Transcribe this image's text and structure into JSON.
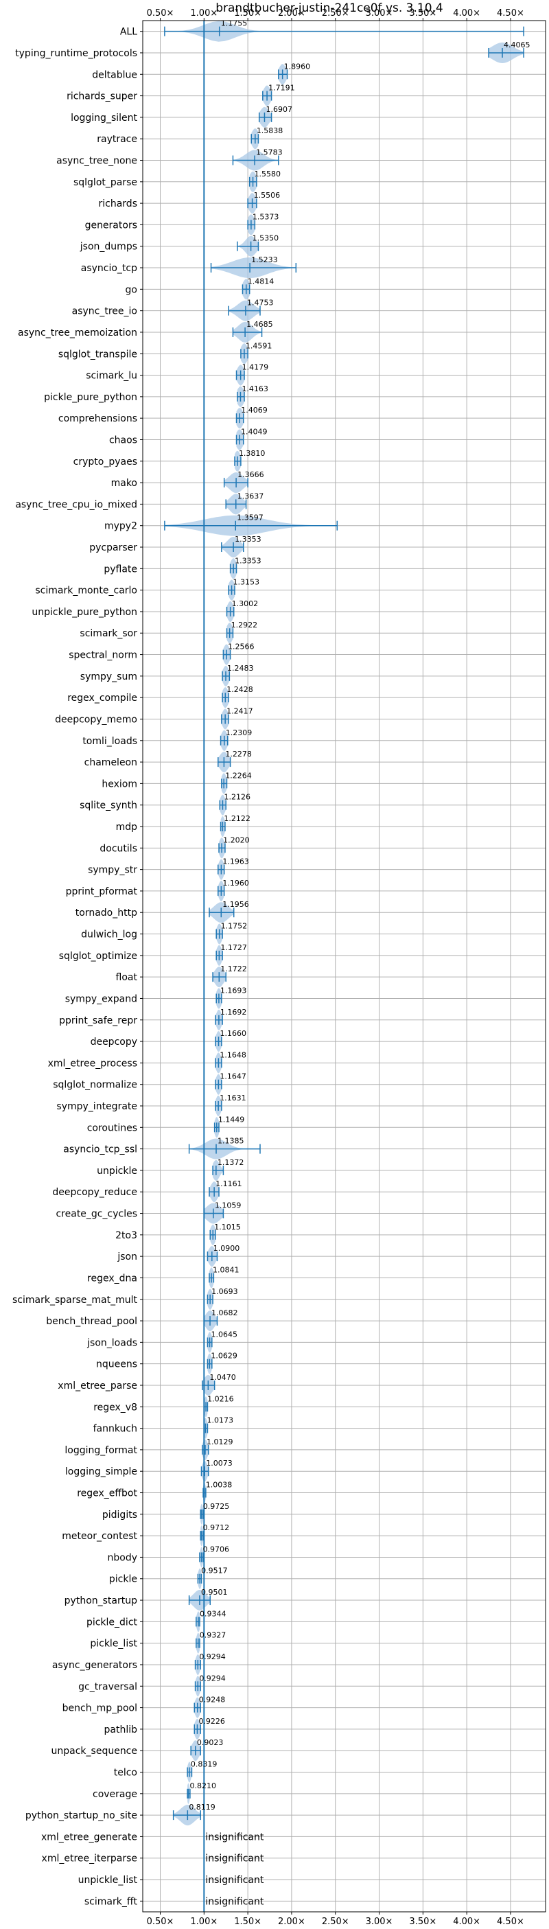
{
  "chart_data": {
    "type": "violin",
    "title": "brandtbucher-justin-241ce0f vs. 3.10.4",
    "xlim": [
      0.3,
      4.9
    ],
    "xticks": [
      0.5,
      1.0,
      1.5,
      2.0,
      2.5,
      3.0,
      3.5,
      4.0,
      4.5
    ],
    "xtick_labels": [
      "0.50×",
      "1.00×",
      "1.50×",
      "2.00×",
      "2.50×",
      "3.00×",
      "3.50×",
      "4.00×",
      "4.50×"
    ],
    "reference_line": 1.0,
    "grid": true,
    "colors": {
      "violin": "#a9c8e6",
      "whisker": "#1f77b4",
      "reference": "#1f77b4",
      "grid": "#b0b0b0"
    },
    "insignificant_text": "insignificant",
    "rows": [
      {
        "name": "ALL",
        "median": 1.1755,
        "min": 0.55,
        "max": 4.65,
        "spread": 0.18,
        "label": "1.1755"
      },
      {
        "name": "typing_runtime_protocols",
        "median": 4.4065,
        "min": 4.25,
        "max": 4.65,
        "spread": 0.12,
        "label": "4.4065"
      },
      {
        "name": "deltablue",
        "median": 1.896,
        "min": 1.85,
        "max": 1.95,
        "spread": 0.04,
        "label": "1.8960"
      },
      {
        "name": "richards_super",
        "median": 1.7191,
        "min": 1.67,
        "max": 1.77,
        "spread": 0.04,
        "label": "1.7191"
      },
      {
        "name": "logging_silent",
        "median": 1.6907,
        "min": 1.63,
        "max": 1.77,
        "spread": 0.05,
        "label": "1.6907"
      },
      {
        "name": "raytrace",
        "median": 1.5838,
        "min": 1.54,
        "max": 1.62,
        "spread": 0.04,
        "label": "1.5838"
      },
      {
        "name": "async_tree_none",
        "median": 1.5783,
        "min": 1.33,
        "max": 1.85,
        "spread": 0.1,
        "label": "1.5783"
      },
      {
        "name": "sqlglot_parse",
        "median": 1.558,
        "min": 1.52,
        "max": 1.6,
        "spread": 0.04,
        "label": "1.5580"
      },
      {
        "name": "richards",
        "median": 1.5506,
        "min": 1.5,
        "max": 1.6,
        "spread": 0.04,
        "label": "1.5506"
      },
      {
        "name": "generators",
        "median": 1.5373,
        "min": 1.5,
        "max": 1.58,
        "spread": 0.04,
        "label": "1.5373"
      },
      {
        "name": "json_dumps",
        "median": 1.535,
        "min": 1.38,
        "max": 1.62,
        "spread": 0.06,
        "label": "1.5350"
      },
      {
        "name": "asyncio_tcp",
        "median": 1.5233,
        "min": 1.08,
        "max": 2.05,
        "spread": 0.2,
        "label": "1.5233"
      },
      {
        "name": "go",
        "median": 1.4814,
        "min": 1.44,
        "max": 1.52,
        "spread": 0.04,
        "label": "1.4814"
      },
      {
        "name": "async_tree_io",
        "median": 1.4753,
        "min": 1.28,
        "max": 1.64,
        "spread": 0.09,
        "label": "1.4753"
      },
      {
        "name": "async_tree_memoization",
        "median": 1.4685,
        "min": 1.33,
        "max": 1.66,
        "spread": 0.08,
        "label": "1.4685"
      },
      {
        "name": "sqlglot_transpile",
        "median": 1.4591,
        "min": 1.42,
        "max": 1.5,
        "spread": 0.04,
        "label": "1.4591"
      },
      {
        "name": "scimark_lu",
        "median": 1.4179,
        "min": 1.37,
        "max": 1.46,
        "spread": 0.04,
        "label": "1.4179"
      },
      {
        "name": "pickle_pure_python",
        "median": 1.4163,
        "min": 1.38,
        "max": 1.46,
        "spread": 0.04,
        "label": "1.4163"
      },
      {
        "name": "comprehensions",
        "median": 1.4069,
        "min": 1.37,
        "max": 1.45,
        "spread": 0.04,
        "label": "1.4069"
      },
      {
        "name": "chaos",
        "median": 1.4049,
        "min": 1.37,
        "max": 1.45,
        "spread": 0.04,
        "label": "1.4049"
      },
      {
        "name": "crypto_pyaes",
        "median": 1.381,
        "min": 1.35,
        "max": 1.42,
        "spread": 0.035,
        "label": "1.3810"
      },
      {
        "name": "mako",
        "median": 1.3666,
        "min": 1.23,
        "max": 1.5,
        "spread": 0.08,
        "label": "1.3666"
      },
      {
        "name": "async_tree_cpu_io_mixed",
        "median": 1.3637,
        "min": 1.25,
        "max": 1.48,
        "spread": 0.07,
        "label": "1.3637"
      },
      {
        "name": "mypy2",
        "median": 1.3597,
        "min": 0.55,
        "max": 2.52,
        "spread": 0.35,
        "label": "1.3597"
      },
      {
        "name": "pycparser",
        "median": 1.3353,
        "min": 1.2,
        "max": 1.45,
        "spread": 0.07,
        "label": "1.3353"
      },
      {
        "name": "pyflate",
        "median": 1.3353,
        "min": 1.3,
        "max": 1.37,
        "spread": 0.035,
        "label": "1.3353"
      },
      {
        "name": "scimark_monte_carlo",
        "median": 1.3153,
        "min": 1.28,
        "max": 1.35,
        "spread": 0.035,
        "label": "1.3153"
      },
      {
        "name": "unpickle_pure_python",
        "median": 1.3002,
        "min": 1.26,
        "max": 1.34,
        "spread": 0.035,
        "label": "1.3002"
      },
      {
        "name": "scimark_sor",
        "median": 1.2922,
        "min": 1.26,
        "max": 1.33,
        "spread": 0.035,
        "label": "1.2922"
      },
      {
        "name": "spectral_norm",
        "median": 1.2566,
        "min": 1.22,
        "max": 1.3,
        "spread": 0.035,
        "label": "1.2566"
      },
      {
        "name": "sympy_sum",
        "median": 1.2483,
        "min": 1.21,
        "max": 1.29,
        "spread": 0.035,
        "label": "1.2483"
      },
      {
        "name": "regex_compile",
        "median": 1.2428,
        "min": 1.21,
        "max": 1.28,
        "spread": 0.035,
        "label": "1.2428"
      },
      {
        "name": "deepcopy_memo",
        "median": 1.2417,
        "min": 1.2,
        "max": 1.28,
        "spread": 0.035,
        "label": "1.2417"
      },
      {
        "name": "tomli_loads",
        "median": 1.2309,
        "min": 1.19,
        "max": 1.27,
        "spread": 0.035,
        "label": "1.2309"
      },
      {
        "name": "chameleon",
        "median": 1.2278,
        "min": 1.16,
        "max": 1.3,
        "spread": 0.05,
        "label": "1.2278"
      },
      {
        "name": "hexiom",
        "median": 1.2264,
        "min": 1.2,
        "max": 1.26,
        "spread": 0.03,
        "label": "1.2264"
      },
      {
        "name": "sqlite_synth",
        "median": 1.2126,
        "min": 1.18,
        "max": 1.25,
        "spread": 0.03,
        "label": "1.2126"
      },
      {
        "name": "mdp",
        "median": 1.2122,
        "min": 1.19,
        "max": 1.24,
        "spread": 0.025,
        "label": "1.2122"
      },
      {
        "name": "docutils",
        "median": 1.202,
        "min": 1.17,
        "max": 1.24,
        "spread": 0.03,
        "label": "1.2020"
      },
      {
        "name": "sympy_str",
        "median": 1.1963,
        "min": 1.16,
        "max": 1.23,
        "spread": 0.03,
        "label": "1.1963"
      },
      {
        "name": "pprint_pformat",
        "median": 1.196,
        "min": 1.16,
        "max": 1.23,
        "spread": 0.03,
        "label": "1.1960"
      },
      {
        "name": "tornado_http",
        "median": 1.1956,
        "min": 1.06,
        "max": 1.34,
        "spread": 0.08,
        "label": "1.1956"
      },
      {
        "name": "dulwich_log",
        "median": 1.1752,
        "min": 1.14,
        "max": 1.21,
        "spread": 0.03,
        "label": "1.1752"
      },
      {
        "name": "sqlglot_optimize",
        "median": 1.1727,
        "min": 1.14,
        "max": 1.21,
        "spread": 0.03,
        "label": "1.1727"
      },
      {
        "name": "float",
        "median": 1.1722,
        "min": 1.1,
        "max": 1.25,
        "spread": 0.05,
        "label": "1.1722"
      },
      {
        "name": "sympy_expand",
        "median": 1.1693,
        "min": 1.14,
        "max": 1.2,
        "spread": 0.03,
        "label": "1.1693"
      },
      {
        "name": "pprint_safe_repr",
        "median": 1.1692,
        "min": 1.13,
        "max": 1.21,
        "spread": 0.03,
        "label": "1.1692"
      },
      {
        "name": "deepcopy",
        "median": 1.166,
        "min": 1.13,
        "max": 1.2,
        "spread": 0.03,
        "label": "1.1660"
      },
      {
        "name": "xml_etree_process",
        "median": 1.1648,
        "min": 1.13,
        "max": 1.2,
        "spread": 0.03,
        "label": "1.1648"
      },
      {
        "name": "sqlglot_normalize",
        "median": 1.1647,
        "min": 1.13,
        "max": 1.2,
        "spread": 0.03,
        "label": "1.1647"
      },
      {
        "name": "sympy_integrate",
        "median": 1.1631,
        "min": 1.13,
        "max": 1.2,
        "spread": 0.03,
        "label": "1.1631"
      },
      {
        "name": "coroutines",
        "median": 1.1449,
        "min": 1.12,
        "max": 1.17,
        "spread": 0.025,
        "label": "1.1449"
      },
      {
        "name": "asyncio_tcp_ssl",
        "median": 1.1385,
        "min": 0.83,
        "max": 1.64,
        "spread": 0.12,
        "label": "1.1385"
      },
      {
        "name": "unpickle",
        "median": 1.1372,
        "min": 1.1,
        "max": 1.22,
        "spread": 0.04,
        "label": "1.1372"
      },
      {
        "name": "deepcopy_reduce",
        "median": 1.1161,
        "min": 1.06,
        "max": 1.17,
        "spread": 0.04,
        "label": "1.1161"
      },
      {
        "name": "create_gc_cycles",
        "median": 1.1059,
        "min": 1.0,
        "max": 1.22,
        "spread": 0.08,
        "label": "1.1059"
      },
      {
        "name": "2to3",
        "median": 1.1015,
        "min": 1.07,
        "max": 1.13,
        "spread": 0.03,
        "label": "1.1015"
      },
      {
        "name": "json",
        "median": 1.09,
        "min": 1.04,
        "max": 1.15,
        "spread": 0.04,
        "label": "1.0900"
      },
      {
        "name": "regex_dna",
        "median": 1.0841,
        "min": 1.06,
        "max": 1.11,
        "spread": 0.025,
        "label": "1.0841"
      },
      {
        "name": "scimark_sparse_mat_mult",
        "median": 1.0693,
        "min": 1.04,
        "max": 1.1,
        "spread": 0.03,
        "label": "1.0693"
      },
      {
        "name": "bench_thread_pool",
        "median": 1.0682,
        "min": 1.0,
        "max": 1.15,
        "spread": 0.05,
        "label": "1.0682"
      },
      {
        "name": "json_loads",
        "median": 1.0645,
        "min": 1.04,
        "max": 1.09,
        "spread": 0.025,
        "label": "1.0645"
      },
      {
        "name": "nqueens",
        "median": 1.0629,
        "min": 1.04,
        "max": 1.09,
        "spread": 0.025,
        "label": "1.0629"
      },
      {
        "name": "xml_etree_parse",
        "median": 1.047,
        "min": 0.98,
        "max": 1.12,
        "spread": 0.05,
        "label": "1.0470"
      },
      {
        "name": "regex_v8",
        "median": 1.0216,
        "min": 1.0,
        "max": 1.04,
        "spread": 0.02,
        "label": "1.0216"
      },
      {
        "name": "fannkuch",
        "median": 1.0173,
        "min": 1.0,
        "max": 1.04,
        "spread": 0.02,
        "label": "1.0173"
      },
      {
        "name": "logging_format",
        "median": 1.0129,
        "min": 0.98,
        "max": 1.05,
        "spread": 0.03,
        "label": "1.0129"
      },
      {
        "name": "logging_simple",
        "median": 1.0073,
        "min": 0.97,
        "max": 1.05,
        "spread": 0.03,
        "label": "1.0073"
      },
      {
        "name": "regex_effbot",
        "median": 1.0038,
        "min": 0.99,
        "max": 1.02,
        "spread": 0.015,
        "label": "1.0038"
      },
      {
        "name": "pidigits",
        "median": 0.9725,
        "min": 0.96,
        "max": 0.99,
        "spread": 0.015,
        "label": "0.9725"
      },
      {
        "name": "meteor_contest",
        "median": 0.9712,
        "min": 0.96,
        "max": 0.99,
        "spread": 0.015,
        "label": "0.9712"
      },
      {
        "name": "nbody",
        "median": 0.9706,
        "min": 0.95,
        "max": 0.99,
        "spread": 0.015,
        "label": "0.9706"
      },
      {
        "name": "pickle",
        "median": 0.9517,
        "min": 0.93,
        "max": 0.97,
        "spread": 0.02,
        "label": "0.9517"
      },
      {
        "name": "python_startup",
        "median": 0.9501,
        "min": 0.83,
        "max": 1.07,
        "spread": 0.07,
        "label": "0.9501"
      },
      {
        "name": "pickle_dict",
        "median": 0.9344,
        "min": 0.91,
        "max": 0.95,
        "spread": 0.02,
        "label": "0.9344"
      },
      {
        "name": "pickle_list",
        "median": 0.9327,
        "min": 0.91,
        "max": 0.95,
        "spread": 0.02,
        "label": "0.9327"
      },
      {
        "name": "async_generators",
        "median": 0.9294,
        "min": 0.9,
        "max": 0.96,
        "spread": 0.025,
        "label": "0.9294"
      },
      {
        "name": "gc_traversal",
        "median": 0.9294,
        "min": 0.9,
        "max": 0.96,
        "spread": 0.025,
        "label": "0.9294"
      },
      {
        "name": "bench_mp_pool",
        "median": 0.9248,
        "min": 0.89,
        "max": 0.96,
        "spread": 0.03,
        "label": "0.9248"
      },
      {
        "name": "pathlib",
        "median": 0.9226,
        "min": 0.89,
        "max": 0.96,
        "spread": 0.03,
        "label": "0.9226"
      },
      {
        "name": "unpack_sequence",
        "median": 0.9023,
        "min": 0.85,
        "max": 0.96,
        "spread": 0.04,
        "label": "0.9023"
      },
      {
        "name": "telco",
        "median": 0.8319,
        "min": 0.81,
        "max": 0.86,
        "spread": 0.02,
        "label": "0.8319"
      },
      {
        "name": "coverage",
        "median": 0.821,
        "min": 0.81,
        "max": 0.84,
        "spread": 0.015,
        "label": "0.8210"
      },
      {
        "name": "python_startup_no_site",
        "median": 0.8119,
        "min": 0.65,
        "max": 0.96,
        "spread": 0.08,
        "label": "0.8119"
      },
      {
        "name": "xml_etree_generate",
        "insignificant": true
      },
      {
        "name": "xml_etree_iterparse",
        "insignificant": true
      },
      {
        "name": "unpickle_list",
        "insignificant": true
      },
      {
        "name": "scimark_fft",
        "insignificant": true
      }
    ]
  }
}
